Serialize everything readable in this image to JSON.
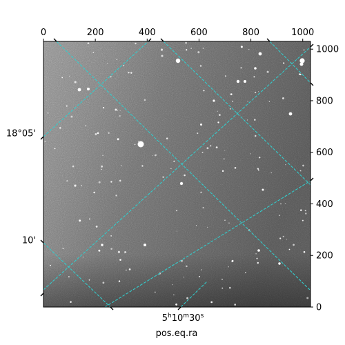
{
  "chart_data": {
    "type": "image",
    "pixel_axes": {
      "x_ticks": [
        0,
        200,
        400,
        600,
        800,
        1000
      ],
      "y_ticks": [
        0,
        200,
        400,
        600,
        800,
        1000
      ],
      "xlim": [
        0,
        1030
      ],
      "ylim": [
        0,
        1030
      ]
    },
    "world_axes": {
      "xlabel": "pos.eq.ra",
      "ra_tick": "5h10m30s",
      "ra_tick_parts": {
        "h": "5",
        "h_sup": "h",
        "m": "10",
        "m_sup": "m",
        "s": "30",
        "s_sup": "s"
      },
      "dec_ticks": [
        "18°05'",
        "10'"
      ]
    },
    "grid_color": "#33cccc",
    "image_style": "grayscale star field with cyan dashed coordinate grid"
  }
}
